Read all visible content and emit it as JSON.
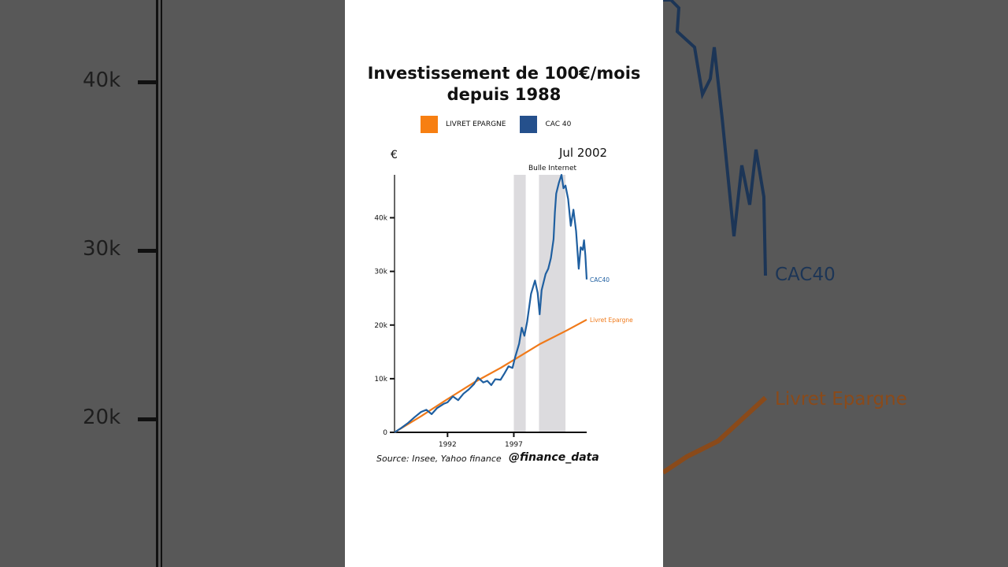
{
  "background": {
    "left_ticks": [
      "40k",
      "30k",
      "20k"
    ],
    "right_labels": {
      "cac": "CAC40",
      "livret": "Livret Epargne"
    }
  },
  "title": "Investissement de 100€/mois depuis 1988",
  "legend": [
    {
      "label": "LIVRET EPARGNE",
      "color": "#f77f12"
    },
    {
      "label": "CAC 40",
      "color": "#25508c"
    }
  ],
  "date_label": "Jul 2002",
  "source": "Source: Insee, Yahoo finance",
  "handle": "@finance_data",
  "chart_data": {
    "type": "line",
    "ylabel": "€",
    "xlim": [
      1988,
      2002.5
    ],
    "ylim": [
      0,
      48000
    ],
    "yticks": [
      {
        "v": 0,
        "label": "0"
      },
      {
        "v": 10000,
        "label": "10k"
      },
      {
        "v": 20000,
        "label": "20k"
      },
      {
        "v": 30000,
        "label": "30k"
      },
      {
        "v": 40000,
        "label": "40k"
      }
    ],
    "xticks": [
      {
        "v": 1992,
        "label": "1992"
      },
      {
        "v": 1997,
        "label": "1997"
      }
    ],
    "annotation": {
      "label": "Bulle Internet",
      "shaded": [
        [
          1997.0,
          1997.9
        ],
        [
          1998.9,
          2000.9
        ]
      ]
    },
    "series": [
      {
        "name": "CAC40",
        "color": "#1f5fa0",
        "x": [
          1988,
          1988.5,
          1989,
          1989.5,
          1990,
          1990.4,
          1990.8,
          1991.2,
          1991.7,
          1992,
          1992.4,
          1992.8,
          1993.2,
          1993.6,
          1994,
          1994.3,
          1994.7,
          1995,
          1995.3,
          1995.6,
          1996,
          1996.3,
          1996.6,
          1996.9,
          1997.1,
          1997.4,
          1997.6,
          1997.8,
          1998,
          1998.3,
          1998.6,
          1998.8,
          1998.95,
          1999.1,
          1999.4,
          1999.6,
          1999.8,
          2000,
          2000.1,
          2000.2,
          2000.4,
          2000.6,
          2000.75,
          2000.9,
          2001.1,
          2001.3,
          2001.5,
          2001.7,
          2001.9,
          2002.05,
          2002.2,
          2002.3,
          2002.4,
          2002.5
        ],
        "y": [
          0,
          800,
          1700,
          2800,
          3800,
          4200,
          3400,
          4500,
          5300,
          5600,
          6700,
          6000,
          7200,
          8000,
          9000,
          10200,
          9300,
          9600,
          8800,
          9900,
          9800,
          11000,
          12300,
          12000,
          14000,
          16500,
          19500,
          18000,
          20500,
          25800,
          28300,
          26000,
          22000,
          26500,
          29500,
          30500,
          32500,
          36000,
          41000,
          44500,
          46500,
          48000,
          45500,
          46000,
          43500,
          38500,
          41500,
          37500,
          30500,
          34500,
          34000,
          35800,
          33000,
          28500
        ]
      },
      {
        "name": "Livret Epargne",
        "color": "#f07a1a",
        "x": [
          1988,
          1990,
          1992,
          1994,
          1996,
          1997,
          1999,
          2001,
          2002.5
        ],
        "y": [
          0,
          3000,
          6200,
          9300,
          12000,
          13500,
          16500,
          19000,
          21000
        ]
      }
    ]
  }
}
